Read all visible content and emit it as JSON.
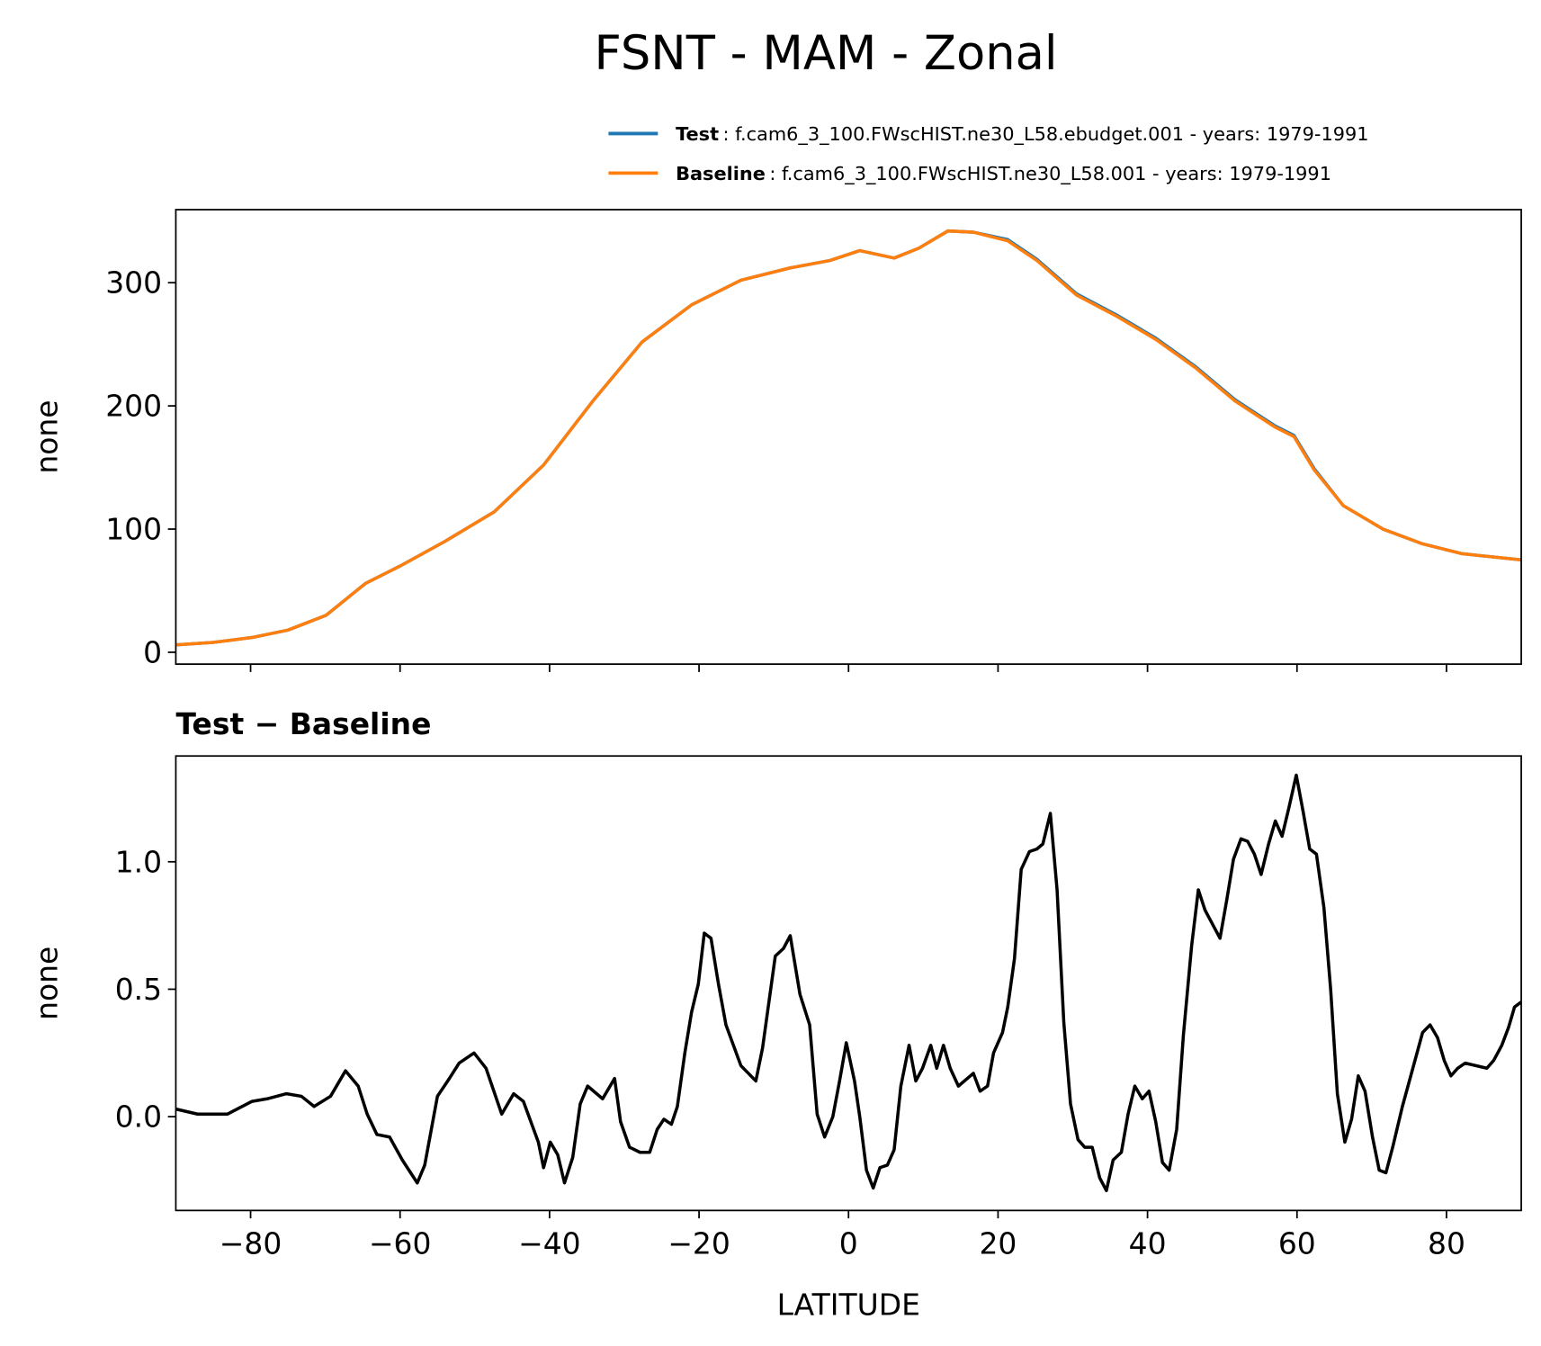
{
  "chart_data": [
    {
      "type": "line",
      "title": "FSNT - MAM - Zonal",
      "ylabel": "none",
      "x": [
        -90,
        -85,
        -79.8,
        -75,
        -69.9,
        -64.6,
        -60,
        -54,
        -47.4,
        -40.8,
        -34.2,
        -27.6,
        -21,
        -14.4,
        -7.8,
        -2.5,
        1.5,
        6.1,
        9.4,
        13.3,
        16.7,
        21.3,
        25.2,
        30.5,
        35.8,
        41.1,
        46.4,
        51.7,
        57,
        59.6,
        62.3,
        66.2,
        71.5,
        76.8,
        82.1,
        90
      ],
      "series": [
        {
          "name": "Test",
          "description": ": f.cam6_3_100.FWscHIST.ne30_L58.ebudget.001 - years: 1979-1991",
          "color": "#1f77b4",
          "values": [
            6,
            8,
            12,
            18,
            30,
            56,
            70,
            90,
            114,
            152,
            204,
            252,
            282,
            302,
            312,
            318,
            326,
            320,
            328,
            342,
            341,
            335,
            319,
            291,
            274,
            255,
            232,
            205,
            184,
            176,
            149,
            119,
            100,
            88,
            80,
            75
          ]
        },
        {
          "name": "Baseline",
          "description": ": f.cam6_3_100.FWscHIST.ne30_L58.001 - years: 1979-1991",
          "color": "#ff7f0e",
          "values": [
            6,
            8,
            12,
            18,
            30,
            56,
            70,
            90,
            114,
            152,
            204,
            252,
            282,
            302,
            312,
            318,
            326,
            320,
            328,
            342,
            341,
            334,
            318,
            290,
            273,
            254,
            231,
            204,
            183,
            175,
            148,
            119,
            100,
            88,
            80,
            75
          ]
        }
      ],
      "xlim": [
        -90,
        90
      ],
      "xticks": [
        -80,
        -60,
        -40,
        -20,
        0,
        20,
        40,
        60,
        80
      ],
      "ylim": [
        -9.6,
        359.3
      ],
      "yticks": [
        0,
        100,
        200,
        300
      ]
    },
    {
      "type": "line",
      "title": "Test − Baseline",
      "xlabel": "LATITUDE",
      "ylabel": "none",
      "color": "#000000",
      "x": [
        -90,
        -87.1,
        -83.1,
        -79.8,
        -77.8,
        -75.2,
        -73.2,
        -71.5,
        -69.3,
        -67.3,
        -65.6,
        -64.4,
        -63.1,
        -61.4,
        -59.7,
        -57.7,
        -56.7,
        -55,
        -53.4,
        -52.1,
        -50.1,
        -48.5,
        -46.4,
        -44.8,
        -43.5,
        -41.5,
        -40.8,
        -39.9,
        -38.9,
        -38,
        -36.9,
        -35.9,
        -34.9,
        -32.9,
        -31.3,
        -30.5,
        -29.3,
        -27.9,
        -26.6,
        -25.6,
        -24.7,
        -23.7,
        -22.9,
        -21.9,
        -21,
        -20.1,
        -19.3,
        -18.4,
        -17.4,
        -16.4,
        -14.4,
        -12.4,
        -11.5,
        -9.8,
        -8.7,
        -7.8,
        -6.5,
        -5.2,
        -4.2,
        -3.2,
        -2.1,
        -1.2,
        -0.3,
        0.8,
        1.5,
        2.4,
        3.3,
        4.2,
        5.2,
        6.1,
        7,
        8.1,
        9,
        9.9,
        11,
        11.8,
        12.7,
        13.6,
        14.7,
        16.7,
        17.6,
        18.6,
        19.4,
        20.6,
        21.3,
        22.2,
        23.1,
        24.2,
        25.2,
        26,
        27,
        27.9,
        28.8,
        29.7,
        30.7,
        31.6,
        32.6,
        33.6,
        34.5,
        35.4,
        36.5,
        37.4,
        38.3,
        39.3,
        40.2,
        41.1,
        42,
        42.9,
        43.9,
        44.8,
        45.9,
        46.8,
        47.7,
        49.7,
        50.6,
        51.5,
        52.5,
        53.4,
        54.3,
        55.2,
        56.2,
        57.1,
        58,
        58.9,
        59.9,
        60.8,
        61.7,
        62.6,
        63.6,
        64.5,
        65.4,
        66.4,
        67.3,
        68.2,
        69.1,
        70.1,
        71,
        71.9,
        72.8,
        74.1,
        75.5,
        76.8,
        77.8,
        78.8,
        79.7,
        80.6,
        81.5,
        82.5,
        85.4,
        86.3,
        87.4,
        88.3,
        89.1,
        90
      ],
      "values": [
        0.03,
        0.01,
        0.01,
        0.06,
        0.07,
        0.09,
        0.08,
        0.04,
        0.08,
        0.18,
        0.12,
        0.01,
        -0.07,
        -0.08,
        -0.17,
        -0.26,
        -0.19,
        0.08,
        0.15,
        0.21,
        0.25,
        0.19,
        0.01,
        0.09,
        0.06,
        -0.1,
        -0.2,
        -0.1,
        -0.15,
        -0.26,
        -0.16,
        0.05,
        0.12,
        0.07,
        0.15,
        -0.02,
        -0.12,
        -0.14,
        -0.14,
        -0.05,
        -0.01,
        -0.03,
        0.04,
        0.25,
        0.41,
        0.52,
        0.72,
        0.7,
        0.52,
        0.36,
        0.2,
        0.14,
        0.27,
        0.63,
        0.66,
        0.71,
        0.48,
        0.36,
        0.01,
        -0.08,
        0,
        0.14,
        0.29,
        0.14,
        0,
        -0.21,
        -0.28,
        -0.2,
        -0.19,
        -0.13,
        0.12,
        0.28,
        0.14,
        0.19,
        0.28,
        0.19,
        0.28,
        0.19,
        0.12,
        0.17,
        0.1,
        0.12,
        0.25,
        0.33,
        0.43,
        0.62,
        0.97,
        1.04,
        1.05,
        1.07,
        1.19,
        0.89,
        0.37,
        0.05,
        -0.09,
        -0.12,
        -0.12,
        -0.24,
        -0.29,
        -0.17,
        -0.14,
        0.01,
        0.12,
        0.07,
        0.1,
        -0.02,
        -0.18,
        -0.21,
        -0.05,
        0.32,
        0.67,
        0.89,
        0.81,
        0.7,
        0.85,
        1.01,
        1.09,
        1.08,
        1.03,
        0.95,
        1.07,
        1.16,
        1.1,
        1.21,
        1.34,
        1.2,
        1.05,
        1.03,
        0.82,
        0.5,
        0.09,
        -0.1,
        -0.01,
        0.16,
        0.1,
        -0.08,
        -0.21,
        -0.22,
        -0.12,
        0.04,
        0.19,
        0.33,
        0.36,
        0.31,
        0.22,
        0.16,
        0.19,
        0.21,
        0.19,
        0.22,
        0.28,
        0.35,
        0.43,
        0.45
      ],
      "xlim": [
        -90,
        90
      ],
      "xticks": [
        {
          "value": -80,
          "label": "−80"
        },
        {
          "value": -60,
          "label": "−60"
        },
        {
          "value": -40,
          "label": "−40"
        },
        {
          "value": -20,
          "label": "−20"
        },
        0,
        20,
        40,
        60,
        80
      ],
      "ylim": [
        -0.368,
        1.415
      ],
      "yticks": [
        {
          "value": 0,
          "label": "0.0"
        },
        {
          "value": 0.5,
          "label": "0.5"
        },
        {
          "value": 1,
          "label": "1.0"
        }
      ]
    }
  ]
}
